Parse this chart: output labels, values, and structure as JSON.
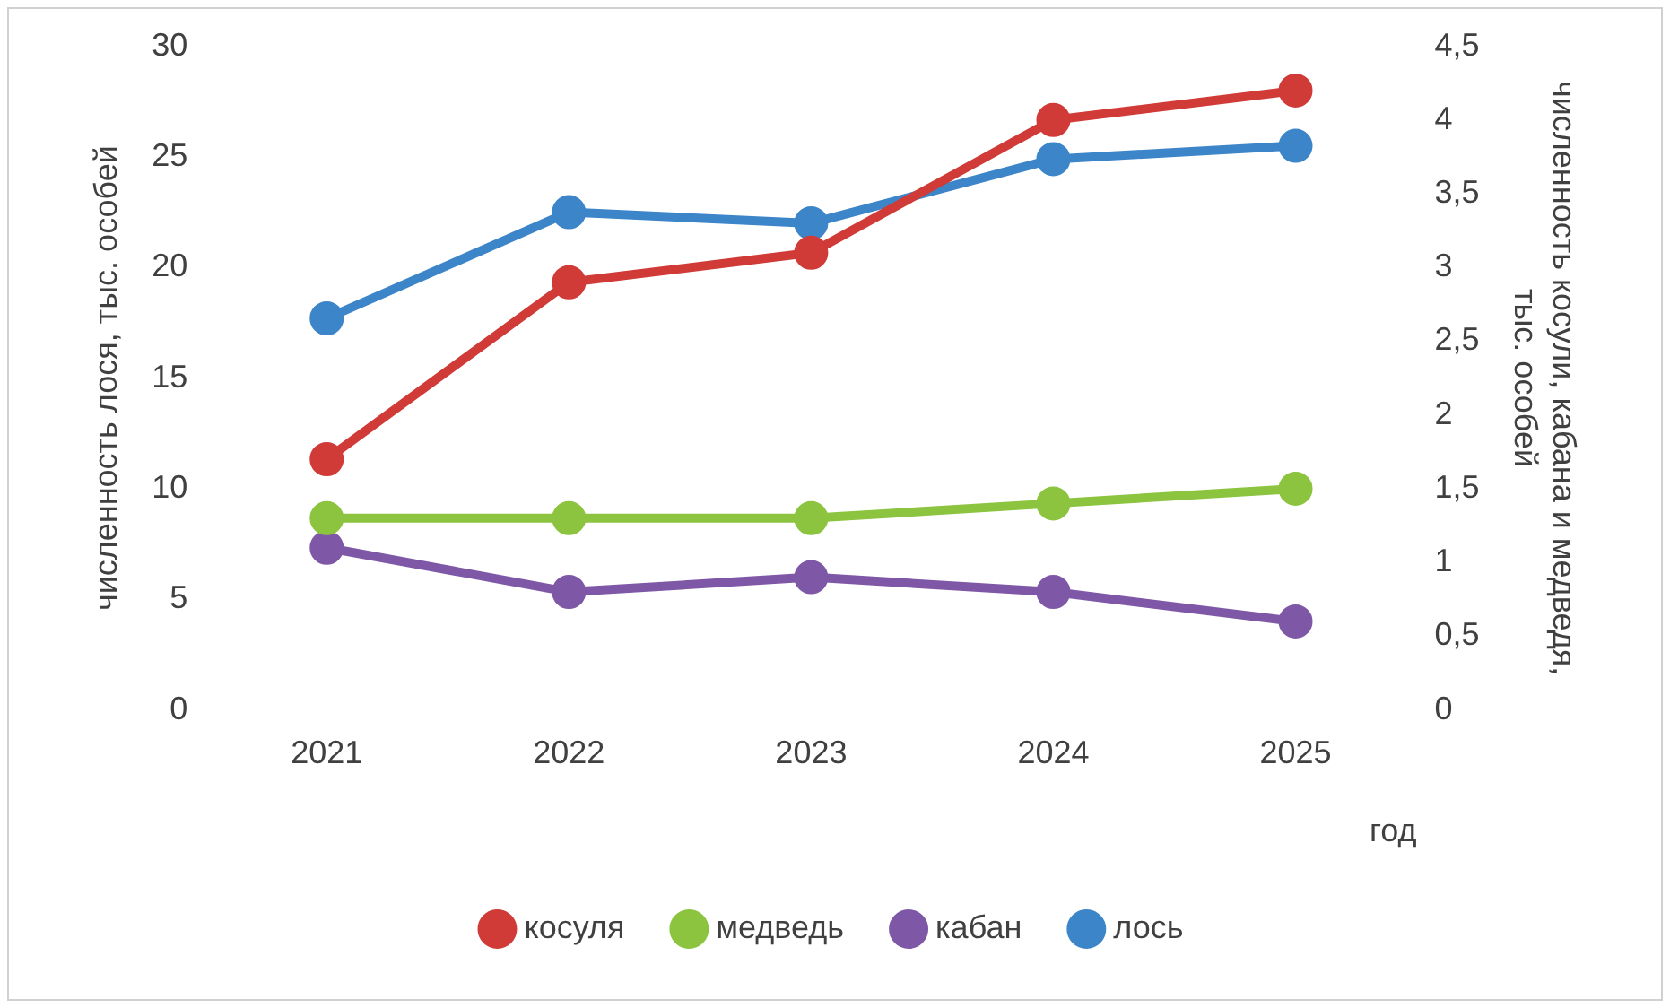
{
  "chart_data": {
    "type": "line",
    "xlabel": "год",
    "ylabel": "численность лося, тыс. особей",
    "y2label": "численность косули, кабана и медведя,\nтыс. особей",
    "categories": [
      "2021",
      "2022",
      "2023",
      "2024",
      "2025"
    ],
    "series": [
      {
        "name": "косуля",
        "color": "#d03a37",
        "axis": "y2",
        "values": [
          1.7,
          2.9,
          3.1,
          4.0,
          4.2
        ]
      },
      {
        "name": "медведь",
        "color": "#8cc43f",
        "axis": "y2",
        "values": [
          1.3,
          1.3,
          1.3,
          1.4,
          1.5
        ]
      },
      {
        "name": "кабан",
        "color": "#7e58a6",
        "axis": "y2",
        "values": [
          1.1,
          0.8,
          0.9,
          0.8,
          0.6
        ]
      },
      {
        "name": "лось",
        "color": "#3c85c8",
        "values": [
          17.7,
          22.5,
          22.0,
          24.9,
          25.5
        ]
      }
    ],
    "ylim": [
      0,
      30
    ],
    "yticks": [
      0,
      5,
      10,
      15,
      20,
      25,
      30
    ],
    "y2lim": [
      0,
      4.5
    ],
    "y2ticks": [
      0,
      {
        "value": 0.5,
        "label": "0,5"
      },
      1,
      {
        "value": 1.5,
        "label": "1,5"
      },
      2,
      {
        "value": 2.5,
        "label": "2,5"
      },
      3,
      {
        "value": 3.5,
        "label": "3,5"
      },
      4,
      {
        "value": 4.5,
        "label": "4,5"
      }
    ],
    "grid": false,
    "legend": "bottom",
    "marker": "circle",
    "line_style": "solid"
  }
}
